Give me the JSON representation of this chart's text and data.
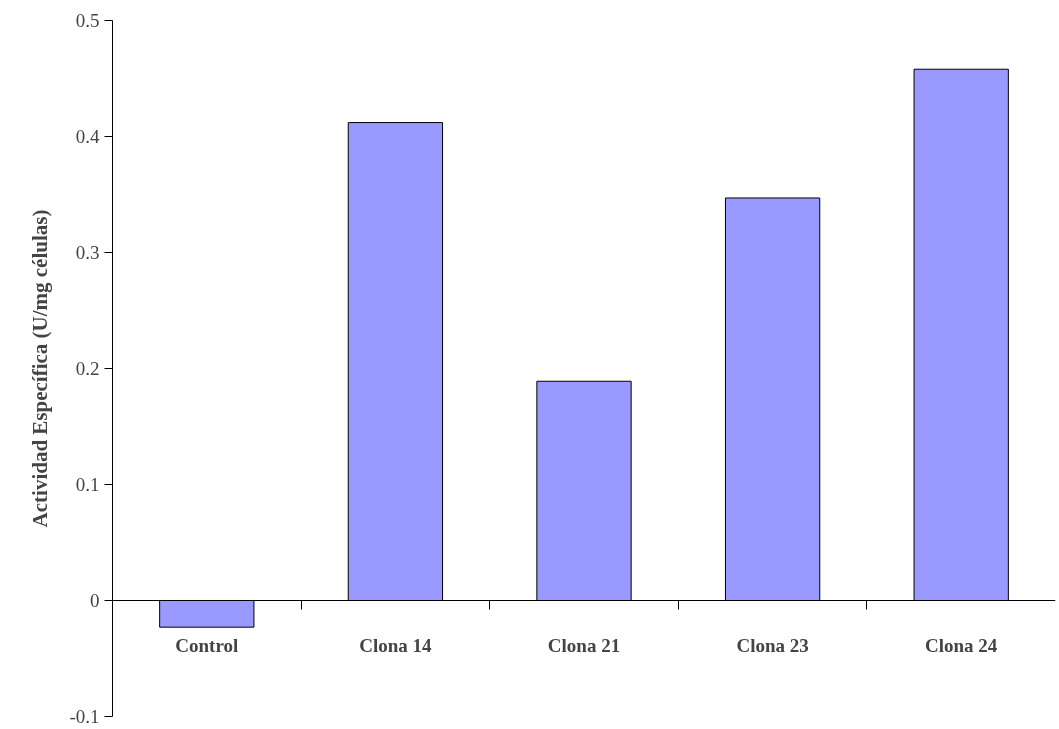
{
  "chart_data": {
    "type": "bar",
    "categories": [
      "Control",
      "Clona 14",
      "Clona 21",
      "Clona 23",
      "Clona 24"
    ],
    "values": [
      -0.023,
      0.412,
      0.189,
      0.347,
      0.458
    ],
    "color": "#9999ff",
    "ylabel": "Actividad Específica (U/mg células)",
    "ylim": [
      -0.1,
      0.5
    ],
    "yticks": [
      -0.1,
      0,
      0.1,
      0.2,
      0.3,
      0.4,
      0.5
    ],
    "grid": false,
    "legend": false
  }
}
